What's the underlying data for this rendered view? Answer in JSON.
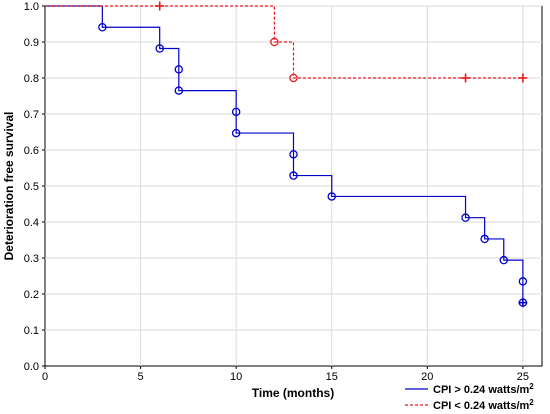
{
  "chart_data": {
    "type": "line",
    "title": "",
    "xlabel": "Time (months)",
    "ylabel": "Deterioration free survival",
    "xlim": [
      0,
      26
    ],
    "ylim": [
      0,
      1.0
    ],
    "xticks": [
      "0",
      "5",
      "10",
      "15",
      "20",
      "25"
    ],
    "yticks": [
      "0.0",
      "0.1",
      "0.2",
      "0.3",
      "0.4",
      "0.5",
      "0.6",
      "0.7",
      "0.8",
      "0.9",
      "1.0"
    ],
    "grid": true,
    "legend_position": "bottom-right",
    "series": [
      {
        "legend_name": "CPI > 0.24 watts/m",
        "legend_sup": "2",
        "color": "#0000cc",
        "line_style": "solid",
        "steps": [
          [
            0,
            1.0
          ],
          [
            3,
            0.941
          ],
          [
            6,
            0.882
          ],
          [
            7,
            0.765
          ],
          [
            10,
            0.647
          ],
          [
            13,
            0.529
          ],
          [
            15,
            0.471
          ],
          [
            22,
            0.412
          ],
          [
            23,
            0.353
          ],
          [
            24,
            0.294
          ],
          [
            25,
            0.176
          ]
        ],
        "end_x": 25,
        "events": [
          [
            3,
            0.941
          ],
          [
            6,
            0.882
          ],
          [
            7,
            0.824
          ],
          [
            7,
            0.765
          ],
          [
            10,
            0.706
          ],
          [
            10,
            0.647
          ],
          [
            13,
            0.588
          ],
          [
            13,
            0.529
          ],
          [
            15,
            0.471
          ],
          [
            22,
            0.412
          ],
          [
            23,
            0.353
          ],
          [
            24,
            0.294
          ],
          [
            25,
            0.235
          ],
          [
            25,
            0.176
          ]
        ],
        "censored": [
          [
            25,
            0.176
          ]
        ]
      },
      {
        "legend_name": "CPI < 0.24 watts/m",
        "legend_sup": "2",
        "color": "#e8191e",
        "line_style": "dashed",
        "steps": [
          [
            0,
            1.0
          ],
          [
            12,
            0.9
          ],
          [
            13,
            0.8
          ]
        ],
        "end_x": 25,
        "events": [
          [
            12,
            0.9
          ],
          [
            13,
            0.8
          ]
        ],
        "censored": [
          [
            6,
            1.0
          ],
          [
            22,
            0.8
          ],
          [
            25,
            0.8
          ]
        ]
      }
    ]
  }
}
